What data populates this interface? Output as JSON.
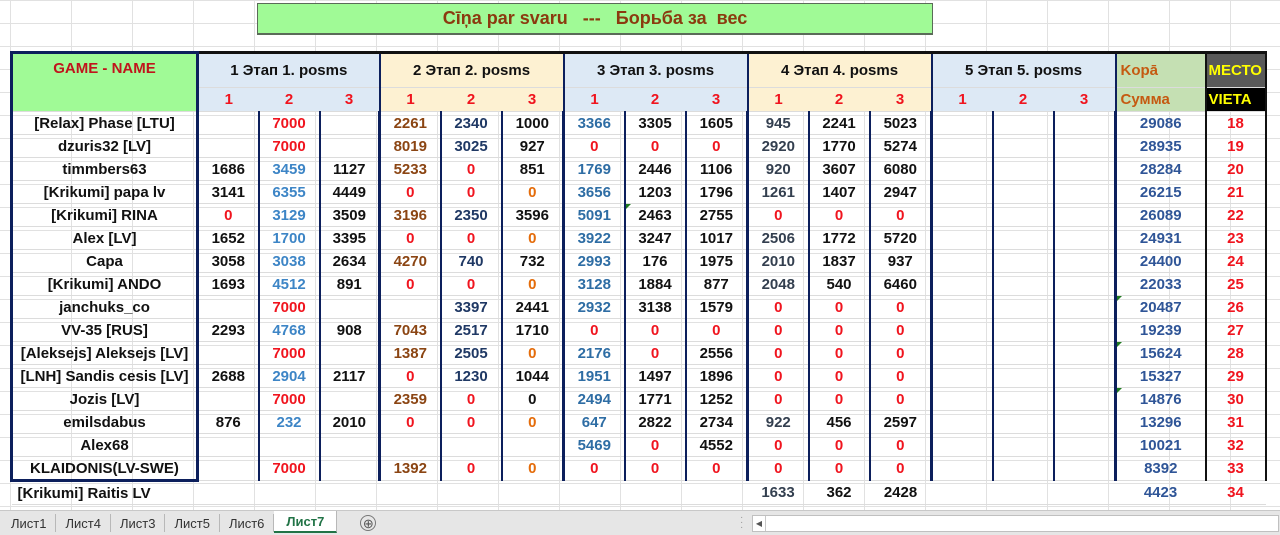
{
  "title": "Cīņa par svaru   ---   Борьба за  вес",
  "header": {
    "name_label": "GAME - NAME",
    "stages": [
      {
        "label": "1 Этап   1. posms",
        "subs": [
          "1",
          "2",
          "3"
        ]
      },
      {
        "label": "2 Этап   2. posms",
        "subs": [
          "1",
          "2",
          "3"
        ]
      },
      {
        "label": "3 Этап   3. posms",
        "subs": [
          "1",
          "2",
          "3"
        ]
      },
      {
        "label": "4 Этап   4. posms",
        "subs": [
          "1",
          "2",
          "3"
        ]
      },
      {
        "label": "5 Этап   5. posms",
        "subs": [
          "1",
          "2",
          "3"
        ]
      }
    ],
    "total_label_1": "Kopā",
    "total_label_2": "Сумма",
    "place_label_1": "МЕСТО",
    "place_label_2": "VIETA"
  },
  "rows": [
    {
      "name": "[Relax] Phase [LTU]",
      "s1": [
        "",
        "7000",
        ""
      ],
      "s2": [
        "2261",
        "2340",
        "1000"
      ],
      "s3": [
        "3366",
        "3305",
        "1605"
      ],
      "s4": [
        "945",
        "2241",
        "5023"
      ],
      "s5": [
        "",
        "",
        ""
      ],
      "total": "29086",
      "place": "18"
    },
    {
      "name": "dzuris32 [LV]",
      "s1": [
        "",
        "7000",
        ""
      ],
      "s2": [
        "8019",
        "3025",
        "927"
      ],
      "s3": [
        "0",
        "0",
        "0"
      ],
      "s4": [
        "2920",
        "1770",
        "5274"
      ],
      "s5": [
        "",
        "",
        ""
      ],
      "total": "28935",
      "place": "19"
    },
    {
      "name": "timmbers63",
      "s1": [
        "1686",
        "3459",
        "1127"
      ],
      "s2": [
        "5233",
        "0",
        "851"
      ],
      "s3": [
        "1769",
        "2446",
        "1106"
      ],
      "s4": [
        "920",
        "3607",
        "6080"
      ],
      "s5": [
        "",
        "",
        ""
      ],
      "total": "28284",
      "place": "20"
    },
    {
      "name": "[Krikumi] papa lv",
      "s1": [
        "3141",
        "6355",
        "4449"
      ],
      "s2": [
        "0",
        "0",
        "0"
      ],
      "s3": [
        "3656",
        "1203",
        "1796"
      ],
      "s4": [
        "1261",
        "1407",
        "2947"
      ],
      "s5": [
        "",
        "",
        ""
      ],
      "total": "26215",
      "place": "21"
    },
    {
      "name": "[Krikumi] RINA",
      "s1": [
        "0",
        "3129",
        "3509"
      ],
      "s2": [
        "3196",
        "2350",
        "3596"
      ],
      "s3": [
        "5091",
        "2463",
        "2755"
      ],
      "s4": [
        "0",
        "0",
        "0"
      ],
      "s5": [
        "",
        "",
        ""
      ],
      "total": "26089",
      "place": "22"
    },
    {
      "name": "Alex [LV]",
      "s1": [
        "1652",
        "1700",
        "3395"
      ],
      "s2": [
        "0",
        "0",
        "0"
      ],
      "s3": [
        "3922",
        "3247",
        "1017"
      ],
      "s4": [
        "2506",
        "1772",
        "5720"
      ],
      "s5": [
        "",
        "",
        ""
      ],
      "total": "24931",
      "place": "23"
    },
    {
      "name": "Capa",
      "s1": [
        "3058",
        "3038",
        "2634"
      ],
      "s2": [
        "4270",
        "740",
        "732"
      ],
      "s3": [
        "2993",
        "176",
        "1975"
      ],
      "s4": [
        "2010",
        "1837",
        "937"
      ],
      "s5": [
        "",
        "",
        ""
      ],
      "total": "24400",
      "place": "24"
    },
    {
      "name": "[Krikumi] ANDO",
      "s1": [
        "1693",
        "4512",
        "891"
      ],
      "s2": [
        "0",
        "0",
        "0"
      ],
      "s3": [
        "3128",
        "1884",
        "877"
      ],
      "s4": [
        "2048",
        "540",
        "6460"
      ],
      "s5": [
        "",
        "",
        ""
      ],
      "total": "22033",
      "place": "25"
    },
    {
      "name": "janchuks_co",
      "s1": [
        "",
        "7000",
        ""
      ],
      "s2": [
        "",
        "3397",
        "2441"
      ],
      "s3": [
        "2932",
        "3138",
        "1579"
      ],
      "s4": [
        "0",
        "0",
        "0"
      ],
      "s5": [
        "",
        "",
        ""
      ],
      "total": "20487",
      "place": "26"
    },
    {
      "name": "VV-35 [RUS]",
      "s1": [
        "2293",
        "4768",
        "908"
      ],
      "s2": [
        "7043",
        "2517",
        "1710"
      ],
      "s3": [
        "0",
        "0",
        "0"
      ],
      "s4": [
        "0",
        "0",
        "0"
      ],
      "s5": [
        "",
        "",
        ""
      ],
      "total": "19239",
      "place": "27"
    },
    {
      "name": "[Aleksejs] Aleksejs [LV]",
      "s1": [
        "",
        "7000",
        ""
      ],
      "s2": [
        "1387",
        "2505",
        "0"
      ],
      "s3": [
        "2176",
        "0",
        "2556"
      ],
      "s4": [
        "0",
        "0",
        "0"
      ],
      "s5": [
        "",
        "",
        ""
      ],
      "total": "15624",
      "place": "28"
    },
    {
      "name": "[LNH] Sandis cesis [LV]",
      "s1": [
        "2688",
        "2904",
        "2117"
      ],
      "s2": [
        "0",
        "1230",
        "1044"
      ],
      "s3": [
        "1951",
        "1497",
        "1896"
      ],
      "s4": [
        "0",
        "0",
        "0"
      ],
      "s5": [
        "",
        "",
        ""
      ],
      "total": "15327",
      "place": "29"
    },
    {
      "name": "Jozis [LV]",
      "s1": [
        "",
        "7000",
        ""
      ],
      "s2": [
        "2359",
        "0",
        "0"
      ],
      "s3": [
        "2494",
        "1771",
        "1252"
      ],
      "s4": [
        "0",
        "0",
        "0"
      ],
      "s5": [
        "",
        "",
        ""
      ],
      "total": "14876",
      "place": "30"
    },
    {
      "name": "emilsdabus",
      "s1": [
        "876",
        "232",
        "2010"
      ],
      "s2": [
        "0",
        "0",
        "0"
      ],
      "s3": [
        "647",
        "2822",
        "2734"
      ],
      "s4": [
        "922",
        "456",
        "2597"
      ],
      "s5": [
        "",
        "",
        ""
      ],
      "total": "13296",
      "place": "31"
    },
    {
      "name": "Alex68",
      "s1": [
        "",
        "",
        ""
      ],
      "s2": [
        "",
        "",
        ""
      ],
      "s3": [
        "5469",
        "0",
        "4552"
      ],
      "s4": [
        "0",
        "0",
        "0"
      ],
      "s5": [
        "",
        "",
        ""
      ],
      "total": "10021",
      "place": "32"
    },
    {
      "name": "KLAIDONIS(LV-SWE)",
      "s1": [
        "",
        "7000",
        ""
      ],
      "s2": [
        "1392",
        "0",
        "0"
      ],
      "s3": [
        "0",
        "0",
        "0"
      ],
      "s4": [
        "0",
        "0",
        "0"
      ],
      "s5": [
        "",
        "",
        ""
      ],
      "total": "8392",
      "place": "33"
    },
    {
      "name": "[Krikumi] Raitis LV",
      "s1": [
        "",
        "",
        ""
      ],
      "s2": [
        "",
        "",
        ""
      ],
      "s3": [
        "",
        "",
        ""
      ],
      "s4": [
        "1633",
        "362",
        "2428"
      ],
      "s5": [
        "",
        "",
        ""
      ],
      "total": "4423",
      "place": "34"
    }
  ],
  "sheet_tabs": [
    "Лист1",
    "Лист4",
    "Лист3",
    "Лист5",
    "Лист6",
    "Лист7"
  ],
  "active_tab": "Лист7",
  "add_sheet_icon": "⊕",
  "colors": {
    "title_bg": "#a0fa96",
    "title_text": "#8b3a0f",
    "stage_blue": "#dde9f5",
    "stage_yellow": "#fdf1d2",
    "total_header_bg": "#c5e0b3",
    "zero_red": "#f0141e",
    "place_red": "#f0141e",
    "border_navy": "#0c1f5c",
    "active_tab_green": "#217346"
  }
}
